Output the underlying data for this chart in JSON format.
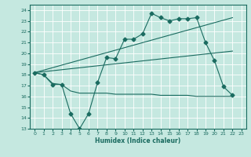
{
  "title": "",
  "xlabel": "Humidex (Indice chaleur)",
  "xlim": [
    -0.5,
    23.5
  ],
  "ylim": [
    13,
    24.5
  ],
  "yticks": [
    13,
    14,
    15,
    16,
    17,
    18,
    19,
    20,
    21,
    22,
    23,
    24
  ],
  "xticks": [
    0,
    1,
    2,
    3,
    4,
    5,
    6,
    7,
    8,
    9,
    10,
    11,
    12,
    13,
    14,
    15,
    16,
    17,
    18,
    19,
    20,
    21,
    22,
    23
  ],
  "bg_color": "#c5e8e0",
  "grid_color": "#ffffff",
  "line_color": "#1a6b60",
  "line1_x": [
    0,
    1,
    2,
    3,
    4,
    5,
    6,
    7,
    8,
    9,
    10,
    11,
    12,
    13,
    14,
    15,
    16,
    17,
    18,
    19,
    20,
    21,
    22
  ],
  "line1_y": [
    18.2,
    18.0,
    17.1,
    17.1,
    14.4,
    13.0,
    14.4,
    17.3,
    19.6,
    19.5,
    21.3,
    21.3,
    21.8,
    23.7,
    23.3,
    23.0,
    23.2,
    23.2,
    23.3,
    21.0,
    19.3,
    16.9,
    16.1
  ],
  "line2_x": [
    0,
    1,
    2,
    3,
    4,
    5,
    6,
    7,
    8,
    9,
    10,
    11,
    12,
    13,
    14,
    15,
    16,
    17,
    18,
    19,
    20,
    21,
    22
  ],
  "line2_y": [
    18.2,
    18.0,
    17.2,
    17.1,
    16.5,
    16.3,
    16.3,
    16.3,
    16.3,
    16.2,
    16.2,
    16.2,
    16.2,
    16.2,
    16.1,
    16.1,
    16.1,
    16.1,
    16.0,
    16.0,
    16.0,
    16.0,
    16.0
  ],
  "line3_x": [
    0,
    22
  ],
  "line3_y": [
    18.2,
    23.3
  ],
  "line4_x": [
    0,
    22
  ],
  "line4_y": [
    18.2,
    20.2
  ]
}
